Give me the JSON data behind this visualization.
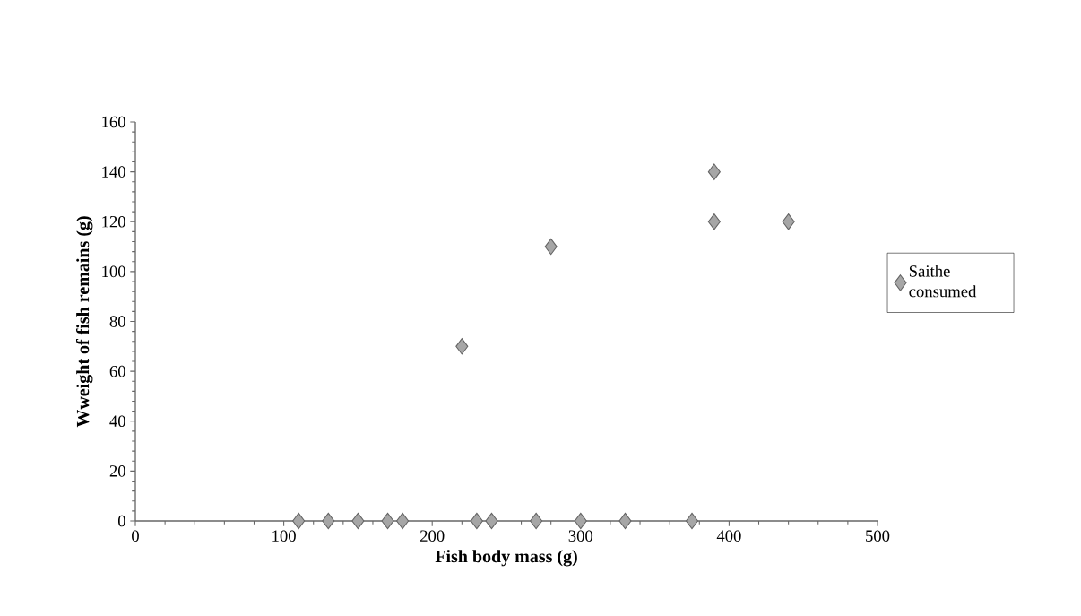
{
  "chart_data": {
    "type": "scatter",
    "xlabel": "**Fish body mass (g)**",
    "ylabel": "**Wweight of fish remains (g)**",
    "series": [
      {
        "name": "Saithe consumed",
        "color": "#a6a6a6",
        "x": [
          110,
          130,
          150,
          170,
          180,
          230,
          240,
          270,
          300,
          330,
          375,
          220,
          280,
          390,
          390,
          440
        ],
        "values": [
          0,
          0,
          0,
          0,
          0,
          0,
          0,
          0,
          0,
          0,
          0,
          70,
          110,
          140,
          120,
          120
        ]
      }
    ],
    "xlim": [
      0,
      500
    ],
    "ylim": [
      0,
      160
    ],
    "xticks": [
      0,
      100,
      200,
      300,
      400,
      500
    ],
    "yticks": [
      0,
      20,
      40,
      60,
      80,
      100,
      120,
      140,
      160
    ],
    "marker": "diamond",
    "legend": "right",
    "grid": false
  }
}
